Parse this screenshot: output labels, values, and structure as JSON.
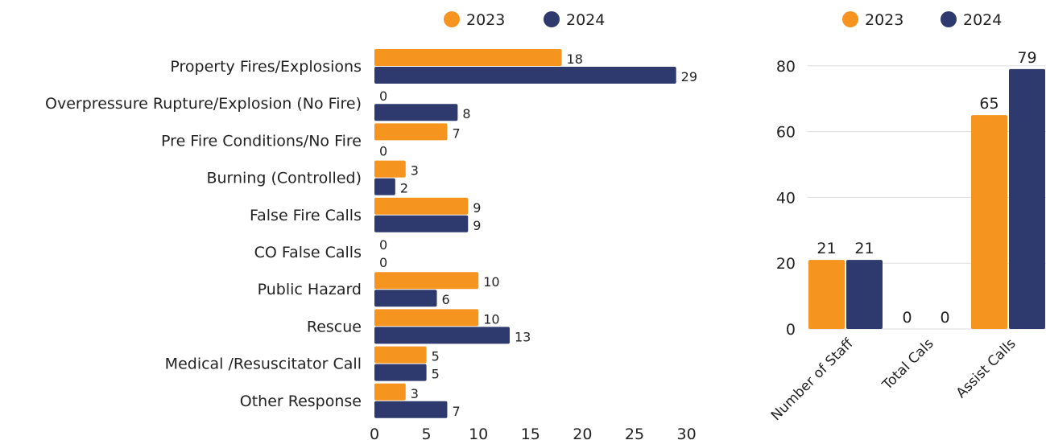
{
  "colors": {
    "2023": "#F5941F",
    "2024": "#2E3A6E",
    "grid": "#DDDDDD"
  },
  "chart_data": [
    {
      "type": "bar",
      "orientation": "horizontal",
      "categories": [
        "Property Fires/Explosions",
        "Overpressure Rupture/Explosion (No Fire)",
        "Pre Fire Conditions/No Fire",
        "Burning (Controlled)",
        "False Fire Calls",
        "CO False Calls",
        "Public Hazard",
        "Rescue",
        "Medical /Resuscitator Call",
        "Other Response"
      ],
      "series": [
        {
          "name": "2023",
          "values": [
            18,
            0,
            7,
            3,
            9,
            0,
            10,
            10,
            5,
            3
          ]
        },
        {
          "name": "2024",
          "values": [
            29,
            8,
            0,
            2,
            9,
            0,
            6,
            13,
            5,
            7
          ]
        }
      ],
      "xlim": [
        0,
        30
      ],
      "xticks": [
        "0",
        "5",
        "10",
        "15",
        "20",
        "25",
        "30"
      ],
      "legend": "top",
      "grid": false
    },
    {
      "type": "bar",
      "orientation": "vertical",
      "categories": [
        "Number of Staff",
        "Total Cals",
        "Assist Calls"
      ],
      "series": [
        {
          "name": "2023",
          "values": [
            21,
            0,
            65
          ]
        },
        {
          "name": "2024",
          "values": [
            21,
            0,
            79
          ]
        }
      ],
      "ylim": [
        0,
        80
      ],
      "yticks": [
        "0",
        "20",
        "40",
        "60",
        "80"
      ],
      "legend": "top",
      "grid": true
    }
  ]
}
